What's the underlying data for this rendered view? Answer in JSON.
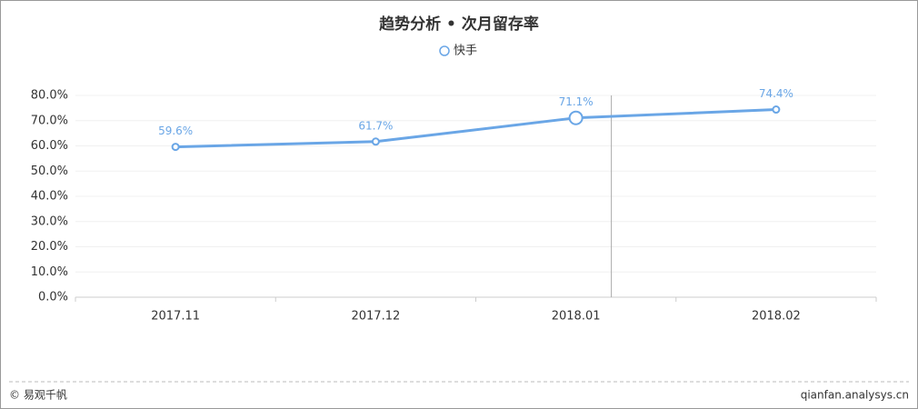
{
  "chart_data": {
    "type": "line",
    "title": "趋势分析 • 次月留存率",
    "categories": [
      "2017.11",
      "2017.12",
      "2018.01",
      "2018.02"
    ],
    "series": [
      {
        "name": "快手",
        "color": "#6aa6e6",
        "values": [
          59.6,
          61.7,
          71.1,
          74.4
        ],
        "value_labels": [
          "59.6%",
          "61.7%",
          "71.1%",
          "74.4%"
        ]
      }
    ],
    "ylim": [
      0,
      80
    ],
    "yticks": [
      {
        "value": 0,
        "label": "0.0%"
      },
      {
        "value": 10,
        "label": "10.0%"
      },
      {
        "value": 20,
        "label": "20.0%"
      },
      {
        "value": 30,
        "label": "30.0%"
      },
      {
        "value": 40,
        "label": "40.0%"
      },
      {
        "value": 50,
        "label": "50.0%"
      },
      {
        "value": 60,
        "label": "60.0%"
      },
      {
        "value": 70,
        "label": "70.0%"
      },
      {
        "value": 80,
        "label": "80.0%"
      }
    ],
    "grid": true,
    "legend": "top"
  },
  "footer": {
    "left": "© 易观千帆",
    "right": "qianfan.analysys.cn"
  }
}
